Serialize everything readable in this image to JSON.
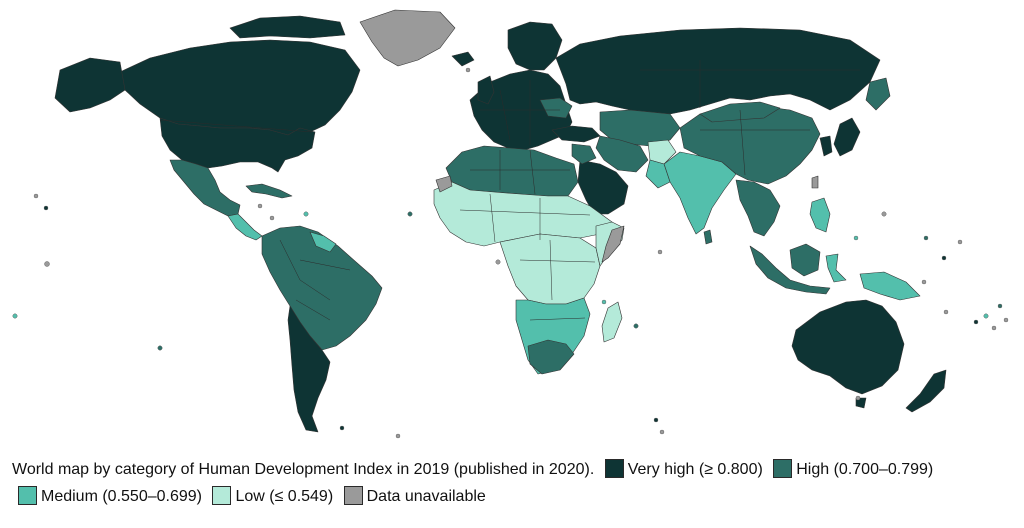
{
  "caption": {
    "text": "World map by category of Human Development Index in 2019 (published in 2020)."
  },
  "legend": [
    {
      "key": "very_high",
      "label": "Very high (≥ 0.800)",
      "color": "#0e3434"
    },
    {
      "key": "high",
      "label": "High (0.700–0.799)",
      "color": "#2d6e66"
    },
    {
      "key": "medium",
      "label": "Medium (0.550–0.699)",
      "color": "#53bfac"
    },
    {
      "key": "low",
      "label": "Low (≤ 0.549)",
      "color": "#b4ead9"
    },
    {
      "key": "unavailable",
      "label": "Data unavailable",
      "color": "#9a9a9a"
    }
  ],
  "colors": {
    "background": "#ffffff",
    "border": "#333333"
  }
}
